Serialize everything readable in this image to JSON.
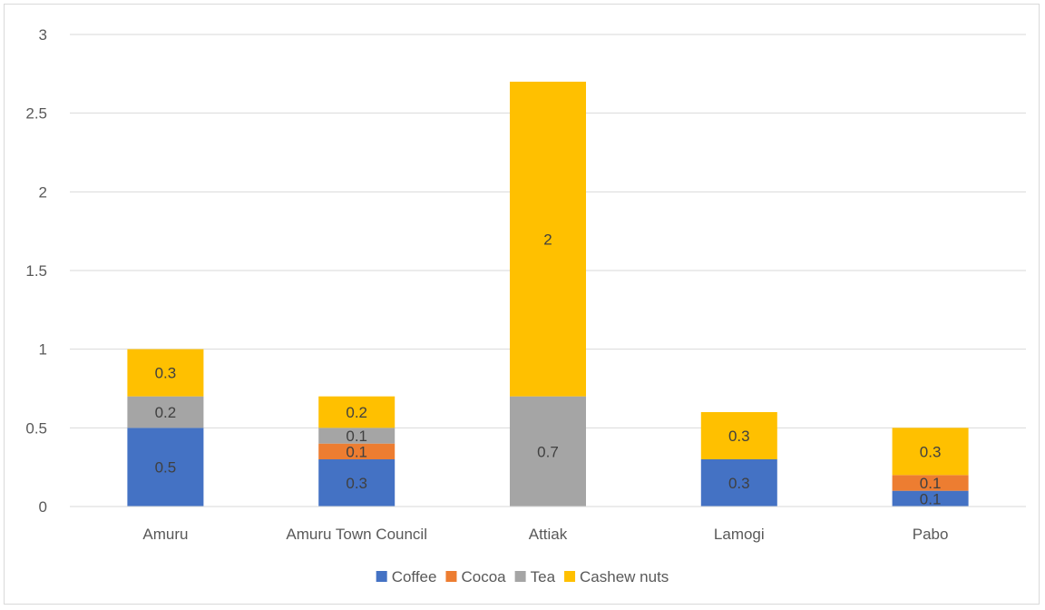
{
  "chart_data": {
    "type": "bar",
    "stacked": true,
    "title": "",
    "xlabel": "",
    "ylabel": "",
    "ylim": [
      0,
      3
    ],
    "yticks": [
      "0",
      "0.5",
      "1",
      "1.5",
      "2",
      "2.5",
      "3"
    ],
    "grid": "horizontal",
    "legend": "bottom",
    "categories": [
      "Amuru",
      "Amuru Town Council",
      "Attiak",
      "Lamogi",
      "Pabo"
    ],
    "series": [
      {
        "name": "Coffee",
        "color": "#4472c4",
        "values": [
          0.5,
          0.3,
          0,
          0.3,
          0.1
        ]
      },
      {
        "name": "Cocoa",
        "color": "#ed7d31",
        "values": [
          0,
          0.1,
          0,
          0,
          0.1
        ]
      },
      {
        "name": "Tea",
        "color": "#a5a5a5",
        "values": [
          0.2,
          0.1,
          0.7,
          0,
          0
        ]
      },
      {
        "name": "Cashew nuts",
        "color": "#ffc000",
        "values": [
          0.3,
          0.2,
          2,
          0.3,
          0.3
        ]
      }
    ]
  }
}
